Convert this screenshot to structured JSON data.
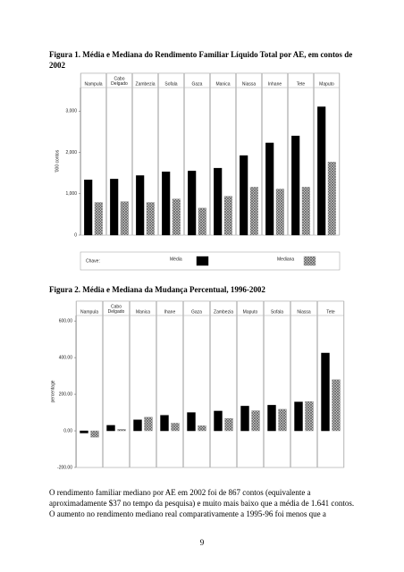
{
  "figures": [
    {
      "caption": "Figura 1.  Média e Mediana do Rendimento Familiar Líquido Total por AE, em contos de 2002"
    },
    {
      "caption": "Figura 2.  Média e Mediana da Mudança Percentual, 1996-2002"
    }
  ],
  "chart_data": [
    {
      "type": "bar",
      "y_label": "'000 contos",
      "categories": [
        "Nampula",
        "Cabo Delgado",
        "Zambezia",
        "Sofala",
        "Gaza",
        "Manica",
        "Niassa",
        "Inhane",
        "Tete",
        "Maputo"
      ],
      "series": [
        {
          "name": "Média",
          "color": "#000000",
          "values": [
            1335,
            1355,
            1440,
            1530,
            1550,
            1620,
            1925,
            2230,
            2400,
            3105
          ]
        },
        {
          "name": "Mediana",
          "color": "#9a9a9a",
          "hatch": true,
          "values": [
            790,
            810,
            790,
            875,
            655,
            940,
            1160,
            1115,
            1160,
            1770
          ]
        }
      ],
      "ylim": [
        0,
        3570
      ],
      "yticks": [
        0,
        {
          "value": 1000,
          "label": "1,000"
        },
        {
          "value": 2000,
          "label": "2,000"
        },
        {
          "value": 3000,
          "label": "3,000"
        }
      ],
      "legend": "bottom",
      "legend_title": "Chave:"
    },
    {
      "type": "bar",
      "y_label": "percentage",
      "categories": [
        "Nampula",
        "Cabo Delgado",
        "Manica",
        "Ihane",
        "Gaza",
        "Zambezia",
        "Maputo",
        "Sofala",
        "Niassa",
        "Tete"
      ],
      "series": [
        {
          "name": "Média",
          "color": "#000000",
          "values": [
            -12,
            30,
            60,
            85,
            100,
            108,
            135,
            140,
            158,
            425
          ]
        },
        {
          "name": "Mediana",
          "color": "#9a9a9a",
          "hatch": true,
          "values": [
            -35,
            8,
            75,
            42,
            28,
            68,
            110,
            118,
            160,
            280
          ]
        }
      ],
      "ylim": [
        -200,
        630
      ],
      "yticks": [
        {
          "value": -200,
          "label": "-200.00"
        },
        {
          "value": 0,
          "label": "0.00"
        },
        {
          "value": 200,
          "label": "200.00"
        },
        {
          "value": 400,
          "label": "400.00"
        },
        {
          "value": 600,
          "label": "600.00"
        }
      ]
    }
  ],
  "paragraph": "O rendimento familiar mediano por AE em 2002 foi de 867 contos (equivalente a aproximadamente $37 no tempo da pesquisa) e muito mais baixo que a média de 1.641 contos. O aumento no rendimento mediano real comparativamente a 1995-96 foi menos que a",
  "page_number": "9"
}
